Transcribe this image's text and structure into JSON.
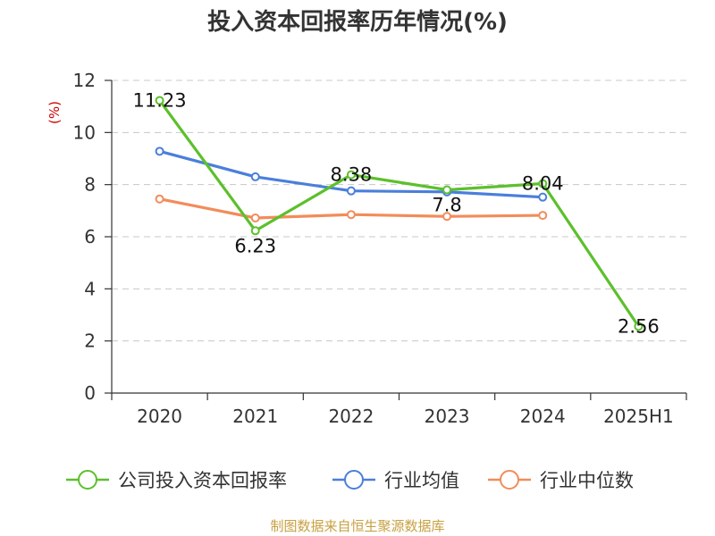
{
  "title": "投入资本回报率历年情况(%)",
  "source": "制图数据来自恒生聚源数据库",
  "chart_data": {
    "type": "line",
    "categories": [
      "2020",
      "2021",
      "2022",
      "2023",
      "2024",
      "2025H1"
    ],
    "yunit": "(%)",
    "ylim": [
      0,
      12
    ],
    "yticks": [
      0,
      2,
      4,
      6,
      8,
      10,
      12
    ],
    "grid": true,
    "legend_position": "bottom",
    "series": [
      {
        "name": "公司投入资本回报率",
        "color": "#5cc02c",
        "values": [
          11.23,
          6.23,
          8.38,
          7.8,
          8.04,
          2.56
        ],
        "labels": [
          "11.23",
          "6.23",
          "8.38",
          "7.8",
          "8.04",
          "2.56"
        ]
      },
      {
        "name": "行业均值",
        "color": "#4a7fdb",
        "values": [
          9.28,
          8.3,
          7.76,
          7.72,
          7.52,
          null
        ]
      },
      {
        "name": "行业中位数",
        "color": "#f28c5a",
        "values": [
          7.45,
          6.72,
          6.85,
          6.78,
          6.82,
          null
        ]
      }
    ]
  }
}
